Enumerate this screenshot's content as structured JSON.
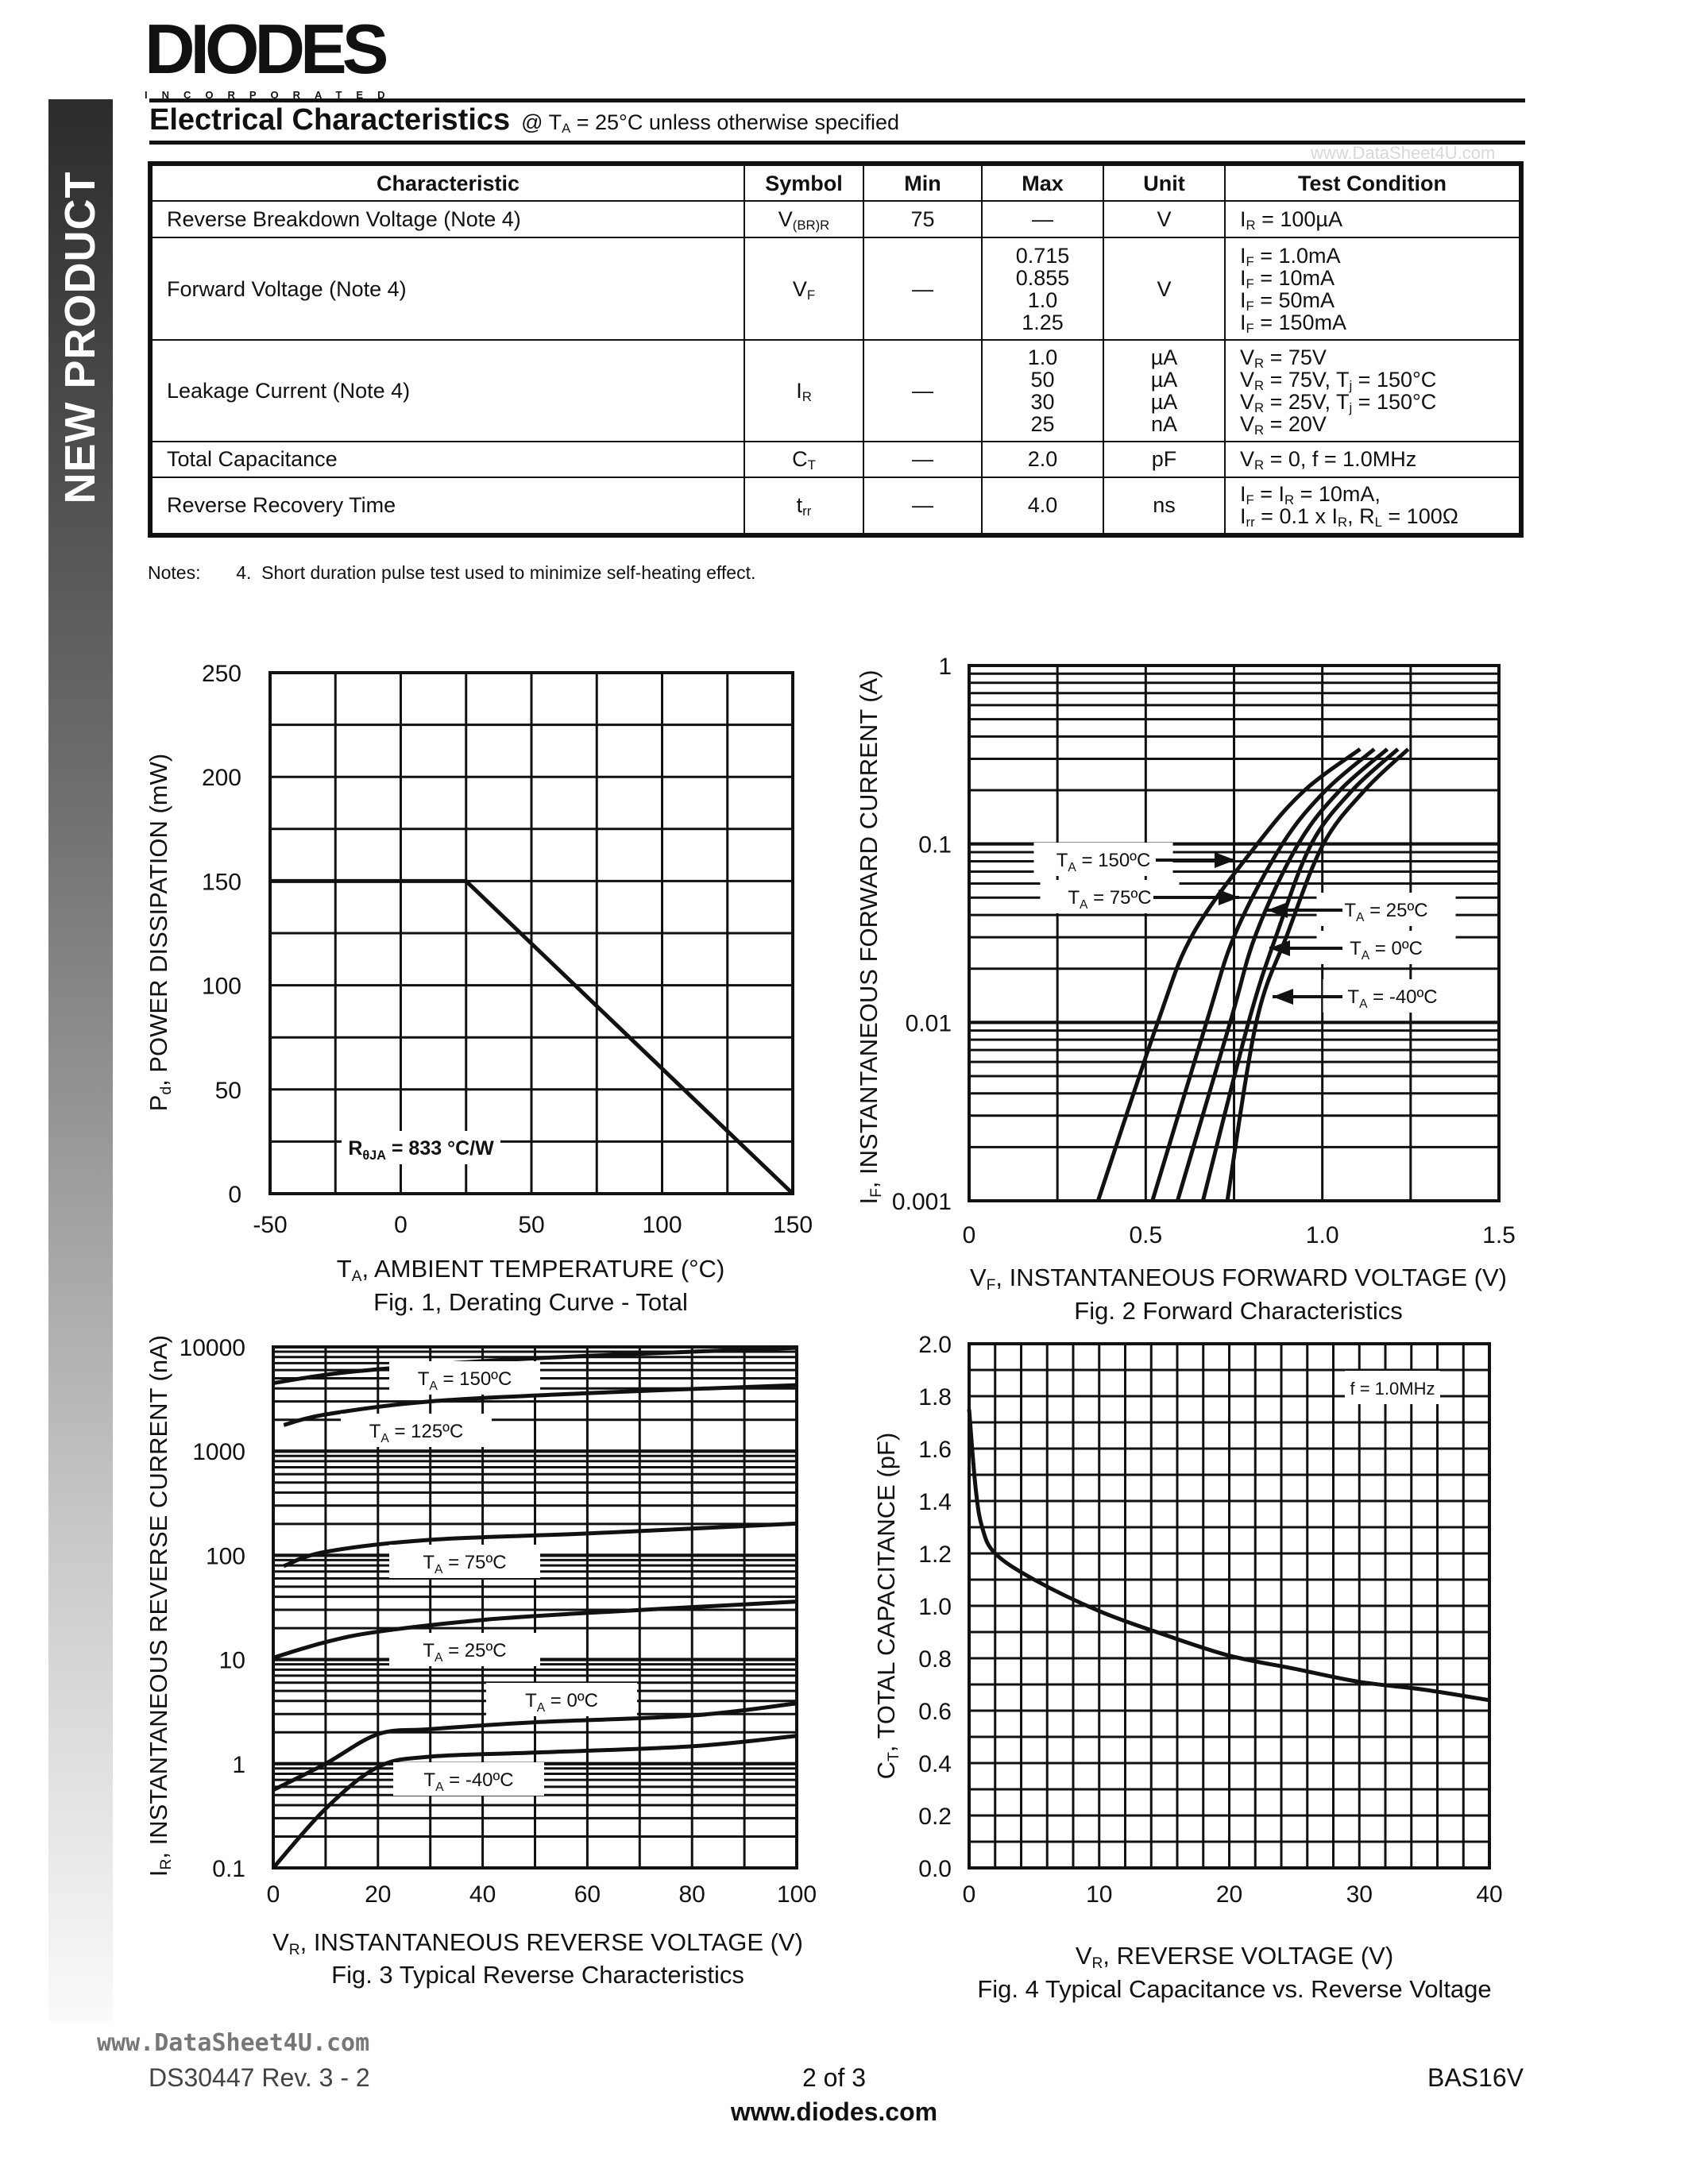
{
  "header": {
    "logo_text": "DIODES",
    "logo_subtext": "INCORPORATED",
    "sidebar_label": "NEW PRODUCT",
    "title": "Electrical Characteristics",
    "title_condition": "@ T_{A} = 25°C unless otherwise specified",
    "watermark": "www.DataSheet4U.com"
  },
  "table": {
    "columns": [
      "Characteristic",
      "Symbol",
      "Min",
      "Max",
      "Unit",
      "Test Condition"
    ],
    "rows": [
      {
        "characteristic": "Reverse Breakdown Voltage (Note 4)",
        "symbol": "V_{(BR)R}",
        "min": [
          "75"
        ],
        "max": [
          "—"
        ],
        "unit": [
          "V"
        ],
        "condition": [
          "I_{R} = 100µA"
        ]
      },
      {
        "characteristic": "Forward Voltage (Note 4)",
        "symbol": "V_{F}",
        "min": [
          "—"
        ],
        "max": [
          "0.715",
          "0.855",
          "1.0",
          "1.25"
        ],
        "unit": [
          "V"
        ],
        "condition": [
          "I_{F} = 1.0mA",
          "I_{F} = 10mA",
          "I_{F} = 50mA",
          "I_{F} = 150mA"
        ]
      },
      {
        "characteristic": "Leakage Current (Note 4)",
        "symbol": "I_{R}",
        "min": [
          "—"
        ],
        "max": [
          "1.0",
          "50",
          "30",
          "25"
        ],
        "unit": [
          "µA",
          "µA",
          "µA",
          "nA"
        ],
        "condition": [
          "V_{R} = 75V",
          "V_{R} = 75V, T_{j} = 150°C",
          "V_{R} = 25V, T_{j} = 150°C",
          "V_{R} = 20V"
        ]
      },
      {
        "characteristic": "Total Capacitance",
        "symbol": "C_{T}",
        "min": [
          "—"
        ],
        "max": [
          "2.0"
        ],
        "unit": [
          "pF"
        ],
        "condition": [
          "V_{R} = 0, f = 1.0MHz"
        ]
      },
      {
        "characteristic": "Reverse Recovery Time",
        "symbol": "t_{rr}",
        "min": [
          "—"
        ],
        "max": [
          "4.0"
        ],
        "unit": [
          "ns"
        ],
        "condition": [
          "I_{F} = I_{R} = 10mA,",
          "I_{rr} = 0.1 x I_{R}, R_{L} = 100Ω"
        ]
      }
    ]
  },
  "notes": "Notes:       4.  Short duration pulse test used to minimize self-heating effect.",
  "chart_data": [
    {
      "type": "line",
      "title": "Fig. 1, Derating Curve - Total",
      "xlabel": "T_{A}, AMBIENT TEMPERATURE (°C)",
      "ylabel": "P_{d}, POWER DISSIPATION (mW)",
      "xlim": [
        -50,
        150
      ],
      "ylim": [
        0,
        250
      ],
      "yscale": "linear",
      "grid": true,
      "xticks": [
        -50,
        0,
        50,
        100,
        150
      ],
      "yticks": [
        0,
        50,
        100,
        150,
        200,
        250
      ],
      "series": [
        {
          "x": [
            -50,
            25,
            150
          ],
          "y": [
            150,
            150,
            0
          ]
        }
      ],
      "annotations": [
        "R_{θJA} = 833 °C/W"
      ]
    },
    {
      "type": "line",
      "title": "Fig. 2  Forward Characteristics",
      "xlabel": "V_{F}, INSTANTANEOUS FORWARD VOLTAGE (V)",
      "ylabel": "I_{F}, INSTANTANEOUS FORWARD CURRENT (A)",
      "xlim": [
        0,
        1.5
      ],
      "ylim": [
        0.001,
        1
      ],
      "yscale": "log",
      "grid": true,
      "xticks": [
        "0",
        "0.5",
        "1.0",
        "1.5"
      ],
      "yticks": [
        "0.001",
        "0.01",
        "0.1",
        "1"
      ],
      "series": [
        {
          "name": "T_{A} = 150ºC",
          "x": [
            0.365,
            0.534,
            0.635,
            0.816,
            0.95,
            1.107
          ],
          "y": [
            0.001,
            0.01,
            0.0316,
            0.1,
            0.2,
            0.34
          ]
        },
        {
          "name": "T_{A} = 75ºC",
          "x": [
            0.519,
            0.672,
            0.754,
            0.887,
            1.01,
            1.147
          ],
          "y": [
            0.001,
            0.01,
            0.0316,
            0.1,
            0.2,
            0.34
          ]
        },
        {
          "name": "T_{A} = 25ºC",
          "x": [
            0.59,
            0.739,
            0.813,
            0.932,
            1.05,
            1.184
          ],
          "y": [
            0.001,
            0.01,
            0.0316,
            0.1,
            0.2,
            0.34
          ]
        },
        {
          "name": "T_{A} = 0ºC",
          "x": [
            0.662,
            0.791,
            0.872,
            0.969,
            1.085,
            1.214
          ],
          "y": [
            0.001,
            0.01,
            0.0316,
            0.1,
            0.2,
            0.34
          ]
        },
        {
          "name": "T_{A} = -40ºC",
          "x": [
            0.731,
            0.813,
            0.902,
            1.003,
            1.12,
            1.243
          ],
          "y": [
            0.001,
            0.01,
            0.0316,
            0.1,
            0.2,
            0.34
          ]
        }
      ]
    },
    {
      "type": "line",
      "title": "Fig. 3  Typical Reverse Characteristics",
      "xlabel": "V_{R}, INSTANTANEOUS REVERSE VOLTAGE (V)",
      "ylabel": "I_{R}, INSTANTANEOUS REVERSE CURRENT (nA)",
      "xlim": [
        0,
        100
      ],
      "ylim": [
        0.1,
        10000
      ],
      "yscale": "log",
      "grid": true,
      "xticks": [
        0,
        20,
        40,
        60,
        80,
        100
      ],
      "yticks": [
        "0.1",
        "1",
        "10",
        "100",
        "1000",
        "10000"
      ],
      "series": [
        {
          "name": "T_{A} = 150ºC",
          "x": [
            0,
            10,
            20,
            40,
            60,
            80,
            100
          ],
          "y": [
            4500,
            5400,
            6100,
            7300,
            8200,
            9000,
            9800
          ]
        },
        {
          "name": "T_{A} = 125ºC",
          "x": [
            2,
            10,
            30,
            60,
            100
          ],
          "y": [
            1780,
            2250,
            3000,
            3600,
            4300
          ]
        },
        {
          "name": "T_{A} = 75ºC",
          "x": [
            2,
            10,
            30,
            60,
            100
          ],
          "y": [
            79,
            108,
            141,
            162,
            202
          ]
        },
        {
          "name": "T_{A} = 25ºC",
          "x": [
            0,
            10,
            20,
            40,
            60,
            100
          ],
          "y": [
            10.4,
            14.7,
            18.5,
            24,
            28,
            36
          ]
        },
        {
          "name": "T_{A} = 0ºC",
          "x": [
            0,
            10,
            20,
            30,
            50,
            80,
            100
          ],
          "y": [
            0.56,
            1.0,
            1.92,
            2.15,
            2.5,
            2.9,
            3.8
          ]
        },
        {
          "name": "T_{A} = -40ºC",
          "x": [
            0,
            10,
            20,
            30,
            50,
            80,
            100
          ],
          "y": [
            0.1,
            0.37,
            0.93,
            1.17,
            1.28,
            1.47,
            1.85
          ]
        }
      ]
    },
    {
      "type": "line",
      "title": "Fig. 4  Typical Capacitance vs. Reverse Voltage",
      "xlabel": "V_{R}, REVERSE VOLTAGE (V)",
      "ylabel": "C_{T}, TOTAL CAPACITANCE (pF)",
      "xlim": [
        0,
        40
      ],
      "ylim": [
        0,
        2.0
      ],
      "yscale": "linear",
      "grid": true,
      "xticks": [
        0,
        10,
        20,
        30,
        40
      ],
      "yticks": [
        "0.0",
        "0.2",
        "0.4",
        "0.6",
        "0.8",
        "1.0",
        "1.2",
        "1.4",
        "1.6",
        "1.8",
        "2.0"
      ],
      "series": [
        {
          "x": [
            0,
            0.5,
            1,
            2,
            5,
            10,
            15,
            20,
            25,
            30,
            35,
            40
          ],
          "y": [
            1.75,
            1.45,
            1.3,
            1.2,
            1.1,
            0.98,
            0.89,
            0.81,
            0.76,
            0.71,
            0.68,
            0.64
          ]
        }
      ],
      "annotations": [
        "f = 1.0MHz"
      ]
    }
  ],
  "footer": {
    "doc_id": "DS30447 Rev. 3 - 2",
    "page": "2 of 3",
    "part": "BAS16V",
    "website": "www.diodes.com",
    "watermark": "www.DataSheet4U.com"
  }
}
